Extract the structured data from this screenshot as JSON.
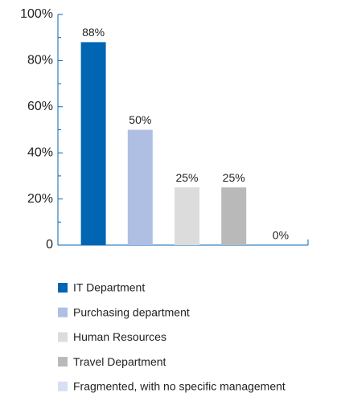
{
  "chart_data": {
    "type": "bar",
    "categories": [
      "IT Department",
      "Purchasing department",
      "Human Resources",
      "Travel Department",
      "Fragmented, with no specific management"
    ],
    "values": [
      88,
      50,
      25,
      25,
      0
    ],
    "value_labels": [
      "88%",
      "50%",
      "25%",
      "25%",
      "0%"
    ],
    "colors": [
      "#0066b3",
      "#aebfe3",
      "#dcdcdc",
      "#b9b9b9",
      "#d6dff3"
    ],
    "ylim": [
      0,
      100
    ],
    "yticks": [
      0,
      {
        "value": 20,
        "label": "20%"
      },
      {
        "value": 40,
        "label": "40%"
      },
      {
        "value": 60,
        "label": "60%"
      },
      {
        "value": 80,
        "label": "80%"
      },
      {
        "value": 100,
        "label": "100%"
      }
    ],
    "minor_yticks": [
      10,
      30,
      50,
      70,
      90
    ],
    "legend": "bottom"
  }
}
